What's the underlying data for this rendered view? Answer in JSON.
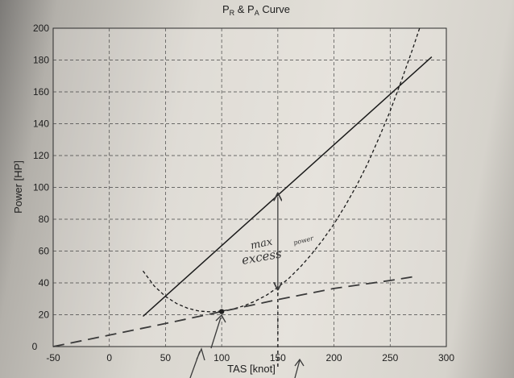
{
  "chart_data": {
    "type": "line",
    "title": "P_R & P_A Curve",
    "title_parts": {
      "p1": "P",
      "s1": "R",
      "amp": " & ",
      "p2": "P",
      "s2": "A",
      "rest": " Curve"
    },
    "xlabel": "TAS [knot]",
    "ylabel": "Power [HP]",
    "xlim": [
      -50,
      300
    ],
    "ylim": [
      0,
      200
    ],
    "x_ticks": [
      -50,
      0,
      50,
      100,
      150,
      200,
      250,
      300
    ],
    "y_ticks": [
      20,
      40,
      60,
      80,
      100,
      120,
      140,
      160,
      180,
      200
    ],
    "x_tick_labels": [
      "-50",
      "0",
      "50",
      "100",
      "150",
      "200",
      "250",
      "300"
    ],
    "y_tick_labels": [
      "20",
      "40",
      "60",
      "80",
      "100",
      "120",
      "140",
      "160",
      "180",
      "200"
    ],
    "origin_label": "0",
    "grid": true,
    "series": [
      {
        "style": "solid",
        "color": "#1a1a1a",
        "x": [
          30,
          287
        ],
        "y": [
          19,
          182
        ]
      },
      {
        "style": "dashed",
        "color": "#1a1a1a",
        "x": [
          30,
          40,
          50,
          60,
          70,
          80,
          90,
          100,
          110,
          120,
          130,
          140,
          150,
          160,
          170,
          180,
          190,
          200,
          210,
          220,
          230,
          240,
          250,
          260,
          270,
          280,
          285
        ],
        "y": [
          47.5,
          38,
          31.5,
          27,
          24,
          22.3,
          21.8,
          22.3,
          23.6,
          25.6,
          28.6,
          32.3,
          37.2,
          43,
          50,
          58,
          67,
          77,
          88.5,
          101,
          115,
          131,
          148,
          167,
          187,
          208,
          220
        ]
      },
      {
        "style": "handdrawn-dash",
        "color": "#3a3a3a",
        "x": [
          -50,
          0,
          50,
          100,
          150,
          200,
          250,
          272
        ],
        "y": [
          0,
          7.2,
          14.5,
          22,
          29.5,
          36.5,
          41.5,
          44
        ]
      }
    ],
    "annotations": {
      "handwriting_line1": "max",
      "handwriting_line2": "excess",
      "handwriting_line3": "power",
      "double_arrow_x": 150,
      "double_arrow_y": [
        38,
        94
      ],
      "vertical_marker_x": 150,
      "min_point": [
        100,
        22
      ]
    }
  }
}
